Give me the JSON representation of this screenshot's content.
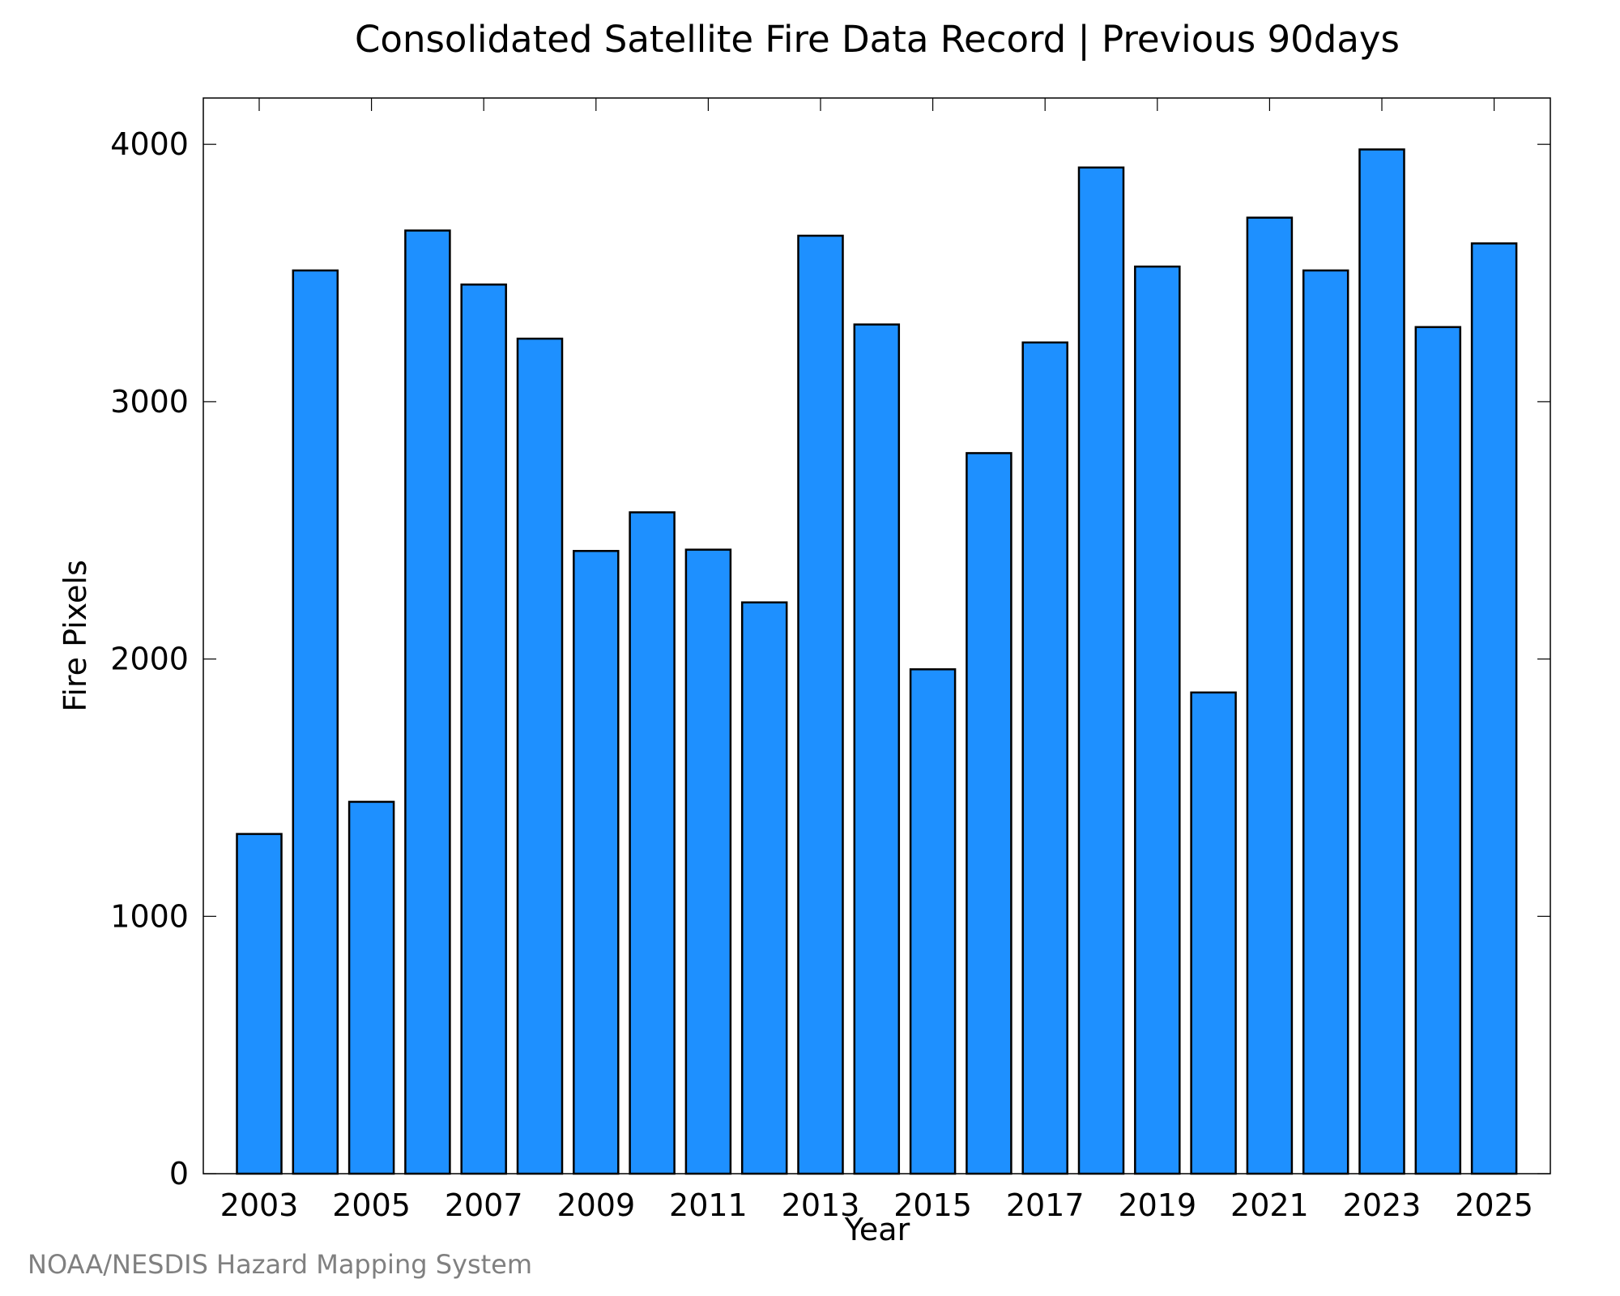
{
  "chart_data": {
    "type": "bar",
    "title": "Consolidated Satellite Fire Data Record | Previous 90days",
    "xlabel": "Year",
    "ylabel": "Fire Pixels",
    "categories": [
      "2003",
      "2004",
      "2005",
      "2006",
      "2007",
      "2008",
      "2009",
      "2010",
      "2011",
      "2012",
      "2013",
      "2014",
      "2015",
      "2016",
      "2017",
      "2018",
      "2019",
      "2020",
      "2021",
      "2022",
      "2023",
      "2024",
      "2025"
    ],
    "values": [
      1320,
      3510,
      1445,
      3665,
      3455,
      3245,
      2420,
      2570,
      2425,
      2220,
      3645,
      3300,
      1960,
      2800,
      3230,
      3910,
      3525,
      1870,
      3715,
      3510,
      3980,
      3290,
      3615
    ],
    "x_tick_labels": [
      "2003",
      "2005",
      "2007",
      "2009",
      "2011",
      "2013",
      "2015",
      "2017",
      "2019",
      "2021",
      "2023",
      "2025"
    ],
    "y_tick_labels": [
      "0",
      "1000",
      "2000",
      "3000",
      "4000"
    ],
    "ylim": [
      0,
      4180
    ],
    "bar_color": "#1e90ff",
    "grid": false,
    "legend": "none"
  },
  "footer": {
    "credit": "NOAA/NESDIS Hazard Mapping System"
  }
}
